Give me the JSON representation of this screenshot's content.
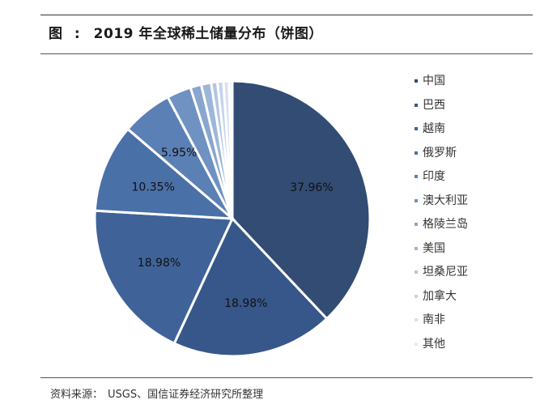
{
  "header": {
    "lead": "图",
    "colon": ":",
    "title": "2019 年全球稀土储量分布（饼图）"
  },
  "footer": {
    "label": "资料来源：",
    "text": "USGS、国信证券经济研究所整理"
  },
  "chart_data": {
    "type": "pie",
    "title": "2019 年全球稀土储量分布（饼图）",
    "legend_position": "right",
    "start_angle_deg": 0,
    "direction": "clockwise",
    "slices": [
      {
        "name": "中国",
        "value": 37.96,
        "label": "37.96%",
        "color": "#324c74"
      },
      {
        "name": "巴西",
        "value": 18.98,
        "label": "18.98%",
        "color": "#37578a"
      },
      {
        "name": "越南",
        "value": 18.98,
        "label": "18.98%",
        "color": "#3f6399"
      },
      {
        "name": "俄罗斯",
        "value": 10.35,
        "label": "10.35%",
        "color": "#4a70a8"
      },
      {
        "name": "印度",
        "value": 5.95,
        "label": "5.95%",
        "color": "#5b80b6"
      },
      {
        "name": "澳大利亚",
        "value": 2.85,
        "color": "#7092c2"
      },
      {
        "name": "格陵兰岛",
        "value": 1.29,
        "color": "#88a6cf"
      },
      {
        "name": "美国",
        "value": 1.16,
        "color": "#9db6d9"
      },
      {
        "name": "坦桑尼亚",
        "value": 0.74,
        "color": "#b2c6e2"
      },
      {
        "name": "加拿大",
        "value": 0.7,
        "color": "#c4d4ea"
      },
      {
        "name": "南非",
        "value": 0.66,
        "color": "#d5e1f1"
      },
      {
        "name": "其他",
        "value": 0.38,
        "color": "#e4ecf7"
      }
    ]
  }
}
